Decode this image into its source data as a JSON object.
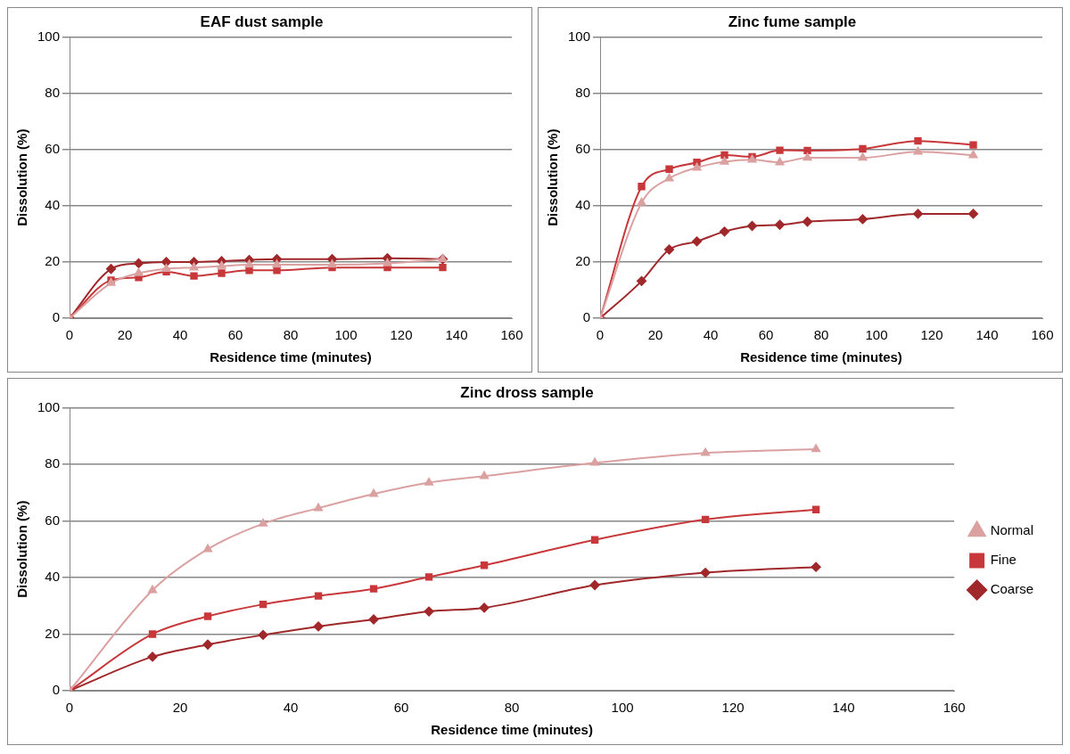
{
  "chart_data": [
    {
      "type": "line",
      "title": "EAF dust sample",
      "xlabel": "Residence time (minutes)",
      "ylabel": "Dissolution (%)",
      "xlim": [
        0,
        160
      ],
      "xticks": [
        0,
        20,
        40,
        60,
        80,
        100,
        120,
        140,
        160
      ],
      "ylim": [
        0,
        100
      ],
      "yticks": [
        0,
        20,
        40,
        60,
        80,
        100
      ],
      "grid": "y",
      "legend": false,
      "x": [
        0,
        15,
        25,
        35,
        45,
        55,
        65,
        75,
        95,
        115,
        135
      ],
      "series": [
        {
          "color": "#a0282a",
          "marker": "diamond",
          "values": [
            0,
            17.5,
            19.5,
            20,
            20,
            20.3,
            20.7,
            21,
            21,
            21.3,
            21
          ]
        },
        {
          "color": "#c8383a",
          "marker": "square",
          "values": [
            0,
            13.5,
            14.5,
            16.5,
            15,
            16,
            17,
            17,
            18,
            18,
            18
          ]
        },
        {
          "color": "#dba0a0",
          "marker": "triangle",
          "values": [
            0,
            12.5,
            16,
            17.5,
            18,
            18.5,
            19,
            19,
            19,
            19.5,
            21
          ]
        }
      ]
    },
    {
      "type": "line",
      "title": "Zinc fume sample",
      "xlabel": "Residence time (minutes)",
      "ylabel": "Dissolution (%)",
      "xlim": [
        0,
        160
      ],
      "xticks": [
        0,
        20,
        40,
        60,
        80,
        100,
        120,
        140,
        160
      ],
      "ylim": [
        0,
        100
      ],
      "yticks": [
        0,
        20,
        40,
        60,
        80,
        100
      ],
      "grid": "y",
      "legend": false,
      "x": [
        0,
        15,
        25,
        35,
        45,
        55,
        65,
        75,
        95,
        115,
        135
      ],
      "series": [
        {
          "color": "#a0282a",
          "marker": "diamond",
          "values": [
            0,
            13.2,
            24.4,
            27.3,
            30.8,
            32.8,
            33.2,
            34.3,
            35.2,
            37.1,
            37.1
          ]
        },
        {
          "color": "#c8383a",
          "marker": "square",
          "values": [
            0,
            46.8,
            53,
            55.4,
            58,
            57.4,
            59.7,
            59.6,
            60.2,
            63,
            61.6
          ]
        },
        {
          "color": "#dba0a0",
          "marker": "triangle",
          "values": [
            0,
            41,
            49.7,
            53.5,
            55.6,
            56.3,
            55.4,
            57,
            57,
            59.2,
            57.9
          ]
        }
      ]
    },
    {
      "type": "line",
      "title": "Zinc dross sample",
      "xlabel": "Residence time (minutes)",
      "ylabel": "Dissolution (%)",
      "xlim": [
        0,
        160
      ],
      "xticks": [
        0,
        20,
        40,
        60,
        80,
        100,
        120,
        140,
        160
      ],
      "ylim": [
        0,
        100
      ],
      "yticks": [
        0,
        20,
        40,
        60,
        80,
        100
      ],
      "grid": "y",
      "legend": "right",
      "x": [
        0,
        15,
        25,
        35,
        45,
        55,
        65,
        75,
        95,
        115,
        135
      ],
      "series": [
        {
          "name": "Coarse",
          "color": "#a0282a",
          "marker": "diamond",
          "values": [
            0,
            12,
            16.3,
            19.7,
            22.7,
            25.2,
            28,
            29.3,
            37.3,
            41.7,
            43.7
          ]
        },
        {
          "name": "Fine",
          "color": "#c8383a",
          "marker": "square",
          "values": [
            0,
            20,
            26.3,
            30.5,
            33.5,
            36,
            40.2,
            44.3,
            53.3,
            60.5,
            64
          ]
        },
        {
          "name": "Normal",
          "color": "#dba0a0",
          "marker": "triangle",
          "values": [
            0,
            35.5,
            50,
            59,
            64.5,
            69.5,
            73.5,
            75.8,
            80.5,
            84,
            85.3
          ]
        }
      ]
    }
  ]
}
